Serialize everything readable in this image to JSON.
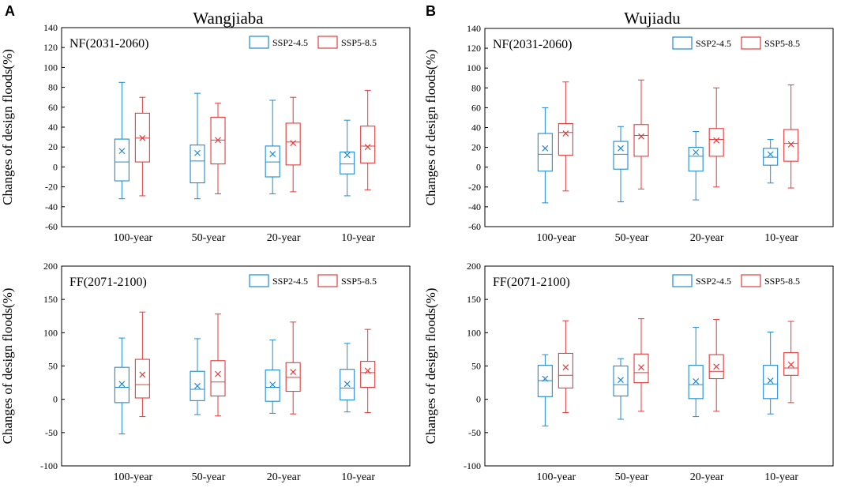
{
  "figure": {
    "panels": [
      {
        "letter": "A",
        "station": "Wangjiaba"
      },
      {
        "letter": "B",
        "station": "Wujiadu"
      }
    ]
  },
  "colors": {
    "ssp245": "#1f8ad0",
    "ssp585": "#e23c3c",
    "axis": "#000000"
  },
  "chart_data": [
    {
      "type": "box",
      "station": "Wangjiaba",
      "period": "NF(2031-2060)",
      "ylabel": "Changes of design floods(%)",
      "ylim": [
        -60,
        140
      ],
      "yticks": [
        -60,
        -40,
        -20,
        0,
        20,
        40,
        60,
        80,
        100,
        120,
        140
      ],
      "categories": [
        "100-year",
        "50-year",
        "20-year",
        "10-year"
      ],
      "series": [
        {
          "name": "SSP2-4.5",
          "boxes": [
            {
              "min": -32,
              "q1": -14,
              "median": 5,
              "q3": 28,
              "max": 85,
              "mean": 16
            },
            {
              "min": -32,
              "q1": -16,
              "median": 6,
              "q3": 22,
              "max": 74,
              "mean": 14
            },
            {
              "min": -27,
              "q1": -10,
              "median": 5,
              "q3": 21,
              "max": 67,
              "mean": 13
            },
            {
              "min": -29,
              "q1": -7,
              "median": 3,
              "q3": 15,
              "max": 47,
              "mean": 12
            }
          ]
        },
        {
          "name": "SSP5-8.5",
          "boxes": [
            {
              "min": -29,
              "q1": 5,
              "median": 29,
              "q3": 54,
              "max": 70,
              "mean": 29
            },
            {
              "min": -27,
              "q1": 3,
              "median": 27,
              "q3": 50,
              "max": 64,
              "mean": 27
            },
            {
              "min": -25,
              "q1": 2,
              "median": 25,
              "q3": 44,
              "max": 70,
              "mean": 24
            },
            {
              "min": -23,
              "q1": 4,
              "median": 21,
              "q3": 41,
              "max": 77,
              "mean": 20
            }
          ]
        }
      ]
    },
    {
      "type": "box",
      "station": "Wujiadu",
      "period": "NF(2031-2060)",
      "ylabel": "Changes of design floods(%)",
      "ylim": [
        -60,
        140
      ],
      "yticks": [
        -60,
        -40,
        -20,
        0,
        20,
        40,
        60,
        80,
        100,
        120,
        140
      ],
      "categories": [
        "100-year",
        "50-year",
        "20-year",
        "10-year"
      ],
      "series": [
        {
          "name": "SSP2-4.5",
          "boxes": [
            {
              "min": -36,
              "q1": -4,
              "median": 13,
              "q3": 34,
              "max": 60,
              "mean": 19
            },
            {
              "min": -35,
              "q1": -2,
              "median": 13,
              "q3": 26,
              "max": 41,
              "mean": 19
            },
            {
              "min": -33,
              "q1": -4,
              "median": 11,
              "q3": 20,
              "max": 36,
              "mean": 15
            },
            {
              "min": -16,
              "q1": 2,
              "median": 10,
              "q3": 19,
              "max": 28,
              "mean": 13
            }
          ]
        },
        {
          "name": "SSP5-8.5",
          "boxes": [
            {
              "min": -24,
              "q1": 12,
              "median": 35,
              "q3": 44,
              "max": 86,
              "mean": 34
            },
            {
              "min": -22,
              "q1": 11,
              "median": 32,
              "q3": 43,
              "max": 88,
              "mean": 31
            },
            {
              "min": -20,
              "q1": 11,
              "median": 28,
              "q3": 39,
              "max": 80,
              "mean": 27
            },
            {
              "min": -21,
              "q1": 6,
              "median": 24,
              "q3": 38,
              "max": 83,
              "mean": 23
            }
          ]
        }
      ]
    },
    {
      "type": "box",
      "station": "Wangjiaba",
      "period": "FF(2071-2100)",
      "ylabel": "Changes of design floods(%)",
      "ylim": [
        -100,
        200
      ],
      "yticks": [
        -100,
        -50,
        0,
        50,
        100,
        150,
        200
      ],
      "categories": [
        "100-year",
        "50-year",
        "20-year",
        "10-year"
      ],
      "series": [
        {
          "name": "SSP2-4.5",
          "boxes": [
            {
              "min": -52,
              "q1": -5,
              "median": 18,
              "q3": 48,
              "max": 92,
              "mean": 23
            },
            {
              "min": -23,
              "q1": -2,
              "median": 15,
              "q3": 42,
              "max": 91,
              "mean": 20
            },
            {
              "min": -21,
              "q1": -3,
              "median": 18,
              "q3": 44,
              "max": 89,
              "mean": 22
            },
            {
              "min": -19,
              "q1": -1,
              "median": 17,
              "q3": 45,
              "max": 84,
              "mean": 23
            }
          ]
        },
        {
          "name": "SSP5-8.5",
          "boxes": [
            {
              "min": -26,
              "q1": 2,
              "median": 22,
              "q3": 60,
              "max": 131,
              "mean": 37
            },
            {
              "min": -25,
              "q1": 5,
              "median": 26,
              "q3": 58,
              "max": 128,
              "mean": 38
            },
            {
              "min": -22,
              "q1": 12,
              "median": 33,
              "q3": 55,
              "max": 116,
              "mean": 41
            },
            {
              "min": -20,
              "q1": 18,
              "median": 40,
              "q3": 57,
              "max": 105,
              "mean": 43
            }
          ]
        }
      ]
    },
    {
      "type": "box",
      "station": "Wujiadu",
      "period": "FF(2071-2100)",
      "ylabel": "Changes of design floods(%)",
      "ylim": [
        -100,
        200
      ],
      "yticks": [
        -100,
        -50,
        0,
        50,
        100,
        150,
        200
      ],
      "categories": [
        "100-year",
        "50-year",
        "20-year",
        "10-year"
      ],
      "series": [
        {
          "name": "SSP2-4.5",
          "boxes": [
            {
              "min": -40,
              "q1": 4,
              "median": 28,
              "q3": 51,
              "max": 67,
              "mean": 31
            },
            {
              "min": -30,
              "q1": 5,
              "median": 22,
              "q3": 50,
              "max": 61,
              "mean": 29
            },
            {
              "min": -26,
              "q1": 1,
              "median": 22,
              "q3": 51,
              "max": 108,
              "mean": 27
            },
            {
              "min": -22,
              "q1": 1,
              "median": 23,
              "q3": 51,
              "max": 101,
              "mean": 28
            }
          ]
        },
        {
          "name": "SSP5-8.5",
          "boxes": [
            {
              "min": -20,
              "q1": 17,
              "median": 36,
              "q3": 69,
              "max": 118,
              "mean": 48
            },
            {
              "min": -18,
              "q1": 25,
              "median": 40,
              "q3": 68,
              "max": 121,
              "mean": 48
            },
            {
              "min": -18,
              "q1": 31,
              "median": 42,
              "q3": 67,
              "max": 120,
              "mean": 49
            },
            {
              "min": -5,
              "q1": 36,
              "median": 47,
              "q3": 70,
              "max": 117,
              "mean": 52
            }
          ]
        }
      ]
    }
  ]
}
